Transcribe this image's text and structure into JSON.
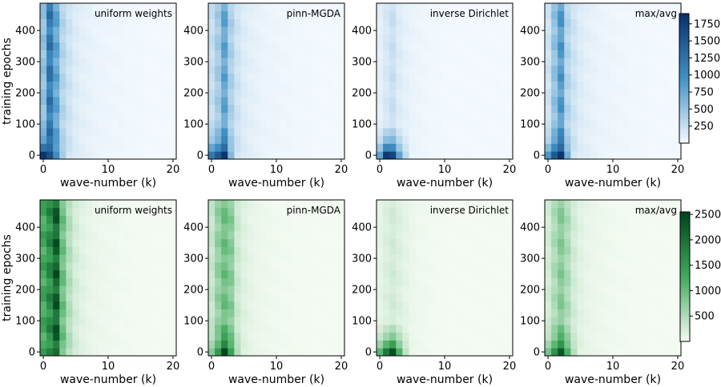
{
  "colors": {
    "blue_high": "#08306b",
    "blue_mid": "#4292c6",
    "blue_low": "#f7fbff",
    "green_high": "#00441b",
    "green_mid": "#41ab5d",
    "green_low": "#f7fcf5"
  },
  "chart_data": [
    {
      "type": "heatmap",
      "row": 0,
      "title": "uniform weights",
      "cmap": "blue",
      "xlabel": "wave-number (k)",
      "ylabel": "training epochs",
      "x_ticks": [
        0,
        10,
        20
      ],
      "y_ticks": [
        0,
        100,
        200,
        300,
        400
      ],
      "xlim": [
        -0.5,
        20.5
      ],
      "ylim": [
        -12.5,
        487.5
      ],
      "vmin": 0,
      "vmax": 1900,
      "profile_k": [
        0,
        1,
        2,
        3,
        4,
        5,
        6,
        7,
        8,
        9,
        10,
        11,
        12,
        13,
        14,
        15,
        16,
        17,
        18,
        19,
        20
      ],
      "profile_values": [
        600,
        1350,
        900,
        400,
        250,
        160,
        120,
        100,
        80,
        70,
        60,
        50,
        50,
        40,
        40,
        40,
        30,
        30,
        30,
        30,
        30
      ],
      "early_k": [
        0,
        1,
        2,
        3
      ],
      "early_values": [
        1850,
        1600,
        1000,
        420
      ]
    },
    {
      "type": "heatmap",
      "row": 0,
      "title": "pinn-MGDA",
      "cmap": "blue",
      "xlabel": "wave-number (k)",
      "ylabel": "",
      "x_ticks": [
        0,
        10,
        20
      ],
      "y_ticks": [
        0,
        100,
        200,
        300,
        400
      ],
      "xlim": [
        -0.5,
        20.5
      ],
      "ylim": [
        -12.5,
        487.5
      ],
      "vmin": 0,
      "vmax": 1900,
      "profile_k": [
        0,
        1,
        2,
        3,
        4,
        5,
        6,
        7,
        8,
        9,
        10,
        11,
        12,
        13,
        14,
        15,
        16,
        17,
        18,
        19,
        20
      ],
      "profile_values": [
        300,
        500,
        900,
        450,
        250,
        160,
        120,
        100,
        80,
        70,
        60,
        50,
        50,
        40,
        40,
        40,
        30,
        30,
        30,
        30,
        30
      ],
      "early_k": [
        0,
        1,
        2,
        3
      ],
      "early_values": [
        1200,
        1500,
        1850,
        600
      ]
    },
    {
      "type": "heatmap",
      "row": 0,
      "title": "inverse Dirichlet",
      "cmap": "blue",
      "xlabel": "wave-number (k)",
      "ylabel": "",
      "x_ticks": [
        0,
        10,
        20
      ],
      "y_ticks": [
        0,
        100,
        200,
        300,
        400
      ],
      "xlim": [
        -0.5,
        20.5
      ],
      "ylim": [
        -12.5,
        487.5
      ],
      "vmin": 0,
      "vmax": 1900,
      "profile_k": [
        0,
        1,
        2,
        3,
        4,
        5,
        6,
        7,
        8,
        9,
        10,
        11,
        12,
        13,
        14,
        15,
        16,
        17,
        18,
        19,
        20
      ],
      "profile_values": [
        120,
        200,
        280,
        160,
        110,
        80,
        60,
        50,
        40,
        40,
        30,
        30,
        30,
        30,
        30,
        30,
        30,
        30,
        30,
        30,
        30
      ],
      "early_k": [
        0,
        1,
        2,
        3,
        4
      ],
      "early_values": [
        800,
        1800,
        1700,
        800,
        300
      ]
    },
    {
      "type": "heatmap",
      "row": 0,
      "title": "max/avg",
      "cmap": "blue",
      "xlabel": "wave-number (k)",
      "ylabel": "",
      "x_ticks": [
        0,
        10,
        20
      ],
      "y_ticks": [
        0,
        100,
        200,
        300,
        400
      ],
      "xlim": [
        -0.5,
        20.5
      ],
      "ylim": [
        -12.5,
        487.5
      ],
      "vmin": 0,
      "vmax": 1900,
      "profile_k": [
        0,
        1,
        2,
        3,
        4,
        5,
        6,
        7,
        8,
        9,
        10,
        11,
        12,
        13,
        14,
        15,
        16,
        17,
        18,
        19,
        20
      ],
      "profile_values": [
        250,
        600,
        1000,
        400,
        250,
        160,
        120,
        100,
        80,
        70,
        60,
        50,
        50,
        40,
        40,
        40,
        30,
        30,
        30,
        30,
        30
      ],
      "early_k": [
        0,
        1,
        2,
        3
      ],
      "early_values": [
        900,
        1500,
        1850,
        700
      ]
    },
    {
      "type": "heatmap",
      "row": 1,
      "title": "uniform weights",
      "cmap": "green",
      "xlabel": "wave-number (k)",
      "ylabel": "training epochs",
      "x_ticks": [
        0,
        10,
        20
      ],
      "y_ticks": [
        0,
        100,
        200,
        300,
        400
      ],
      "xlim": [
        -0.5,
        20.5
      ],
      "ylim": [
        -12.5,
        487.5
      ],
      "vmin": 0,
      "vmax": 2550,
      "profile_k": [
        0,
        1,
        2,
        3,
        4,
        5,
        6,
        7,
        8,
        9,
        10,
        11,
        12,
        13,
        14,
        15,
        16,
        17,
        18,
        19,
        20
      ],
      "profile_values": [
        1500,
        1900,
        2500,
        1100,
        550,
        280,
        180,
        130,
        100,
        80,
        70,
        60,
        50,
        50,
        40,
        40,
        40,
        30,
        30,
        30,
        30
      ],
      "early_k": [],
      "early_values": []
    },
    {
      "type": "heatmap",
      "row": 1,
      "title": "pinn-MGDA",
      "cmap": "green",
      "xlabel": "wave-number (k)",
      "ylabel": "",
      "x_ticks": [
        0,
        10,
        20
      ],
      "y_ticks": [
        0,
        100,
        200,
        300,
        400
      ],
      "xlim": [
        -0.5,
        20.5
      ],
      "ylim": [
        -12.5,
        487.5
      ],
      "vmin": 0,
      "vmax": 2550,
      "profile_k": [
        0,
        1,
        2,
        3,
        4,
        5,
        6,
        7,
        8,
        9,
        10,
        11,
        12,
        13,
        14,
        15,
        16,
        17,
        18,
        19,
        20
      ],
      "profile_values": [
        400,
        800,
        1100,
        900,
        350,
        200,
        140,
        100,
        80,
        70,
        60,
        50,
        50,
        40,
        40,
        40,
        30,
        30,
        30,
        30,
        30
      ],
      "early_k": [
        0,
        1,
        2,
        3,
        4
      ],
      "early_values": [
        800,
        1500,
        2500,
        1400,
        500
      ]
    },
    {
      "type": "heatmap",
      "row": 1,
      "title": "inverse Dirichlet",
      "cmap": "green",
      "xlabel": "wave-number (k)",
      "ylabel": "",
      "x_ticks": [
        0,
        10,
        20
      ],
      "y_ticks": [
        0,
        100,
        200,
        300,
        400
      ],
      "xlim": [
        -0.5,
        20.5
      ],
      "ylim": [
        -12.5,
        487.5
      ],
      "vmin": 0,
      "vmax": 2550,
      "profile_k": [
        0,
        1,
        2,
        3,
        4,
        5,
        6,
        7,
        8,
        9,
        10,
        11,
        12,
        13,
        14,
        15,
        16,
        17,
        18,
        19,
        20
      ],
      "profile_values": [
        150,
        220,
        300,
        220,
        150,
        100,
        70,
        60,
        50,
        40,
        40,
        30,
        30,
        30,
        30,
        30,
        30,
        30,
        30,
        30,
        30
      ],
      "early_k": [
        0,
        1,
        2,
        3,
        4
      ],
      "early_values": [
        1100,
        1900,
        2400,
        1200,
        400
      ]
    },
    {
      "type": "heatmap",
      "row": 1,
      "title": "max/avg",
      "cmap": "green",
      "xlabel": "wave-number (k)",
      "ylabel": "",
      "x_ticks": [
        0,
        10,
        20
      ],
      "y_ticks": [
        0,
        100,
        200,
        300,
        400
      ],
      "xlim": [
        -0.5,
        20.5
      ],
      "ylim": [
        -12.5,
        487.5
      ],
      "vmin": 0,
      "vmax": 2550,
      "profile_k": [
        0,
        1,
        2,
        3,
        4,
        5,
        6,
        7,
        8,
        9,
        10,
        11,
        12,
        13,
        14,
        15,
        16,
        17,
        18,
        19,
        20
      ],
      "profile_values": [
        300,
        600,
        900,
        600,
        300,
        180,
        130,
        100,
        80,
        70,
        60,
        50,
        50,
        40,
        40,
        40,
        30,
        30,
        30,
        30,
        30
      ],
      "early_k": [
        0,
        1,
        2,
        3,
        4
      ],
      "early_values": [
        900,
        1600,
        2300,
        1200,
        450
      ]
    }
  ],
  "colorbars": [
    {
      "row": 0,
      "cmap": "blue",
      "vmin": 0,
      "vmax": 1900,
      "ticks": [
        250,
        500,
        750,
        1000,
        1250,
        1500,
        1750
      ]
    },
    {
      "row": 1,
      "cmap": "green",
      "vmin": 0,
      "vmax": 2550,
      "ticks": [
        500,
        1000,
        1500,
        2000,
        2500
      ]
    }
  ]
}
